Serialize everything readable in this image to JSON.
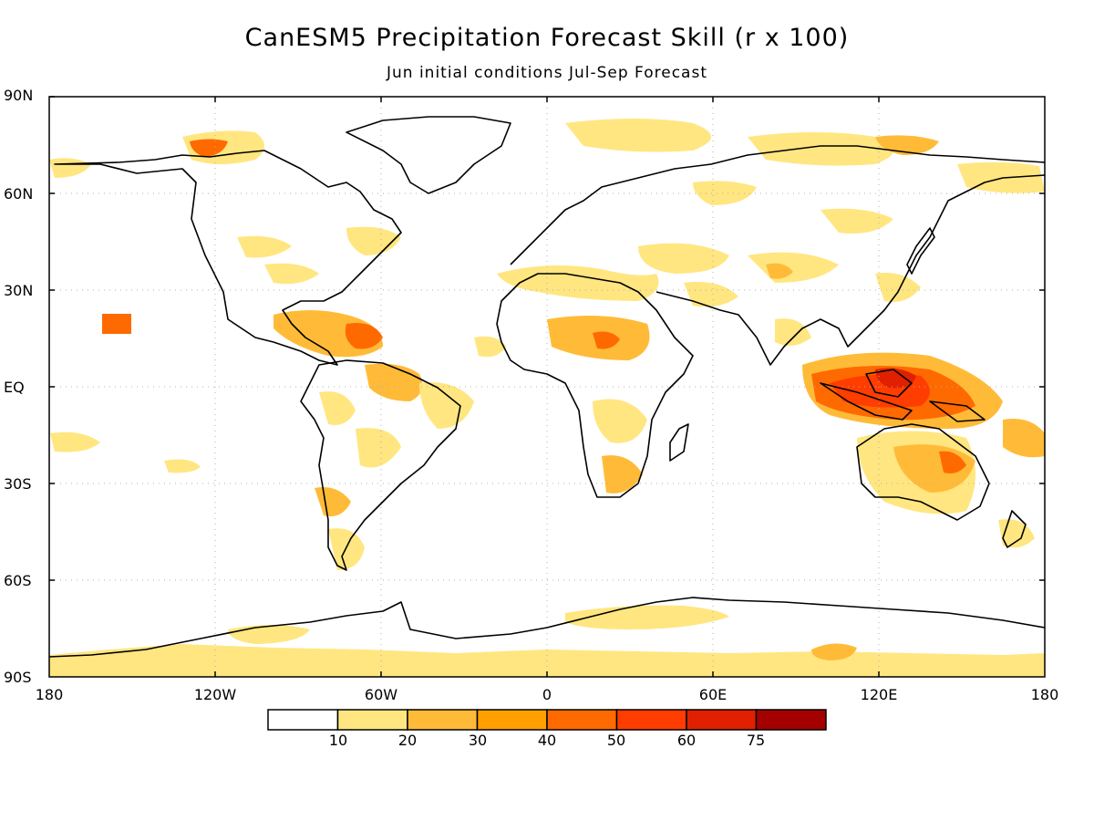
{
  "header": {
    "title": "CanESM5 Precipitation Forecast Skill (r x 100)",
    "subtitle": "Jun initial conditions   Jul-Sep Forecast"
  },
  "axes": {
    "y_ticks": [
      "90N",
      "60N",
      "30N",
      "EQ",
      "30S",
      "60S",
      "90S"
    ],
    "x_ticks": [
      "180",
      "120W",
      "60W",
      "0",
      "60E",
      "120E",
      "180"
    ]
  },
  "colorbar": {
    "labels": [
      "10",
      "20",
      "30",
      "40",
      "50",
      "60",
      "75"
    ],
    "colors": [
      "#ffffff",
      "#ffe680",
      "#ffbb38",
      "#ffa000",
      "#ff6a00",
      "#ff3d00",
      "#e02000",
      "#a50000"
    ]
  },
  "colors": {
    "land_outline": "#000000",
    "grid": "#b0b0b0"
  }
}
